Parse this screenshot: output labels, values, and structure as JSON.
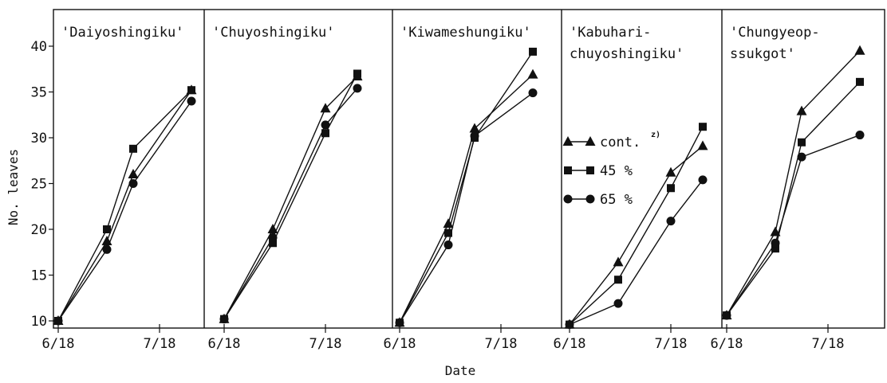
{
  "chart_data": {
    "type": "line",
    "xlabel": "Date",
    "ylabel": "No. leaves",
    "ylim": [
      10,
      40
    ],
    "yticks": [
      10,
      15,
      20,
      25,
      30,
      35,
      40
    ],
    "x_tick_labels": [
      "6/18",
      "7/18"
    ],
    "marker_style": {
      "cont.": "triangle",
      "45 %": "square",
      "65 %": "circle"
    },
    "legend": {
      "placement": "inside panel 4, upper-left",
      "entries": [
        "cont.",
        "45 %",
        "65 %"
      ],
      "superscript": "z)"
    },
    "panels": [
      {
        "title": "'Daiyoshingiku'",
        "x": [
          "6/18",
          "7/3",
          "7/11",
          "7/18",
          "7/31"
        ],
        "series": [
          {
            "name": "cont.",
            "values": [
              10,
              18.7,
              26,
              null,
              35.2
            ]
          },
          {
            "name": "45 %",
            "values": [
              10,
              20,
              28.8,
              null,
              35.2
            ]
          },
          {
            "name": "65 %",
            "values": [
              10,
              17.8,
              25,
              null,
              34
            ]
          }
        ]
      },
      {
        "title": "'Chuyoshingiku'",
        "x": [
          "6/18",
          "7/3",
          "7/11",
          "7/18",
          "7/31"
        ],
        "series": [
          {
            "name": "cont.",
            "values": [
              10.2,
              20,
              null,
              33.2,
              36.7
            ]
          },
          {
            "name": "45 %",
            "values": [
              10.2,
              18.5,
              null,
              30.5,
              37
            ]
          },
          {
            "name": "65 %",
            "values": [
              10.2,
              19.1,
              null,
              31.4,
              35.4
            ]
          }
        ]
      },
      {
        "title": "'Kiwameshungiku'",
        "x": [
          "6/18",
          "7/3",
          "7/11",
          "7/18",
          "7/31"
        ],
        "series": [
          {
            "name": "cont.",
            "values": [
              9.8,
              20.6,
              31,
              null,
              36.9
            ]
          },
          {
            "name": "45 %",
            "values": [
              9.8,
              19.6,
              30,
              null,
              39.4
            ]
          },
          {
            "name": "65 %",
            "values": [
              9.8,
              18.3,
              30.2,
              null,
              34.9
            ]
          }
        ]
      },
      {
        "title": "'Kabuhari-chuyoshingiku'",
        "title_lines": [
          "'Kabuhari-",
          "chuyoshingiku'"
        ],
        "x": [
          "6/18",
          "7/3",
          "7/11",
          "7/18",
          "7/31"
        ],
        "series": [
          {
            "name": "cont.",
            "values": [
              9.6,
              16.4,
              null,
              26.2,
              29.1
            ]
          },
          {
            "name": "45 %",
            "values": [
              9.6,
              14.5,
              null,
              24.5,
              31.2
            ]
          },
          {
            "name": "65 %",
            "values": [
              9.6,
              11.9,
              null,
              20.9,
              25.4
            ]
          }
        ]
      },
      {
        "title": "'Chungyeop-ssukgot'",
        "title_lines": [
          "'Chungyeop-",
          "ssukgot'"
        ],
        "x": [
          "6/18",
          "7/3",
          "7/11",
          "7/18",
          "7/31"
        ],
        "series": [
          {
            "name": "cont.",
            "values": [
              10.6,
              19.7,
              32.9,
              null,
              39.5
            ]
          },
          {
            "name": "45 %",
            "values": [
              10.6,
              17.9,
              29.5,
              null,
              36.1
            ]
          },
          {
            "name": "65 %",
            "values": [
              10.6,
              18.5,
              27.9,
              null,
              30.3
            ]
          }
        ]
      }
    ]
  }
}
